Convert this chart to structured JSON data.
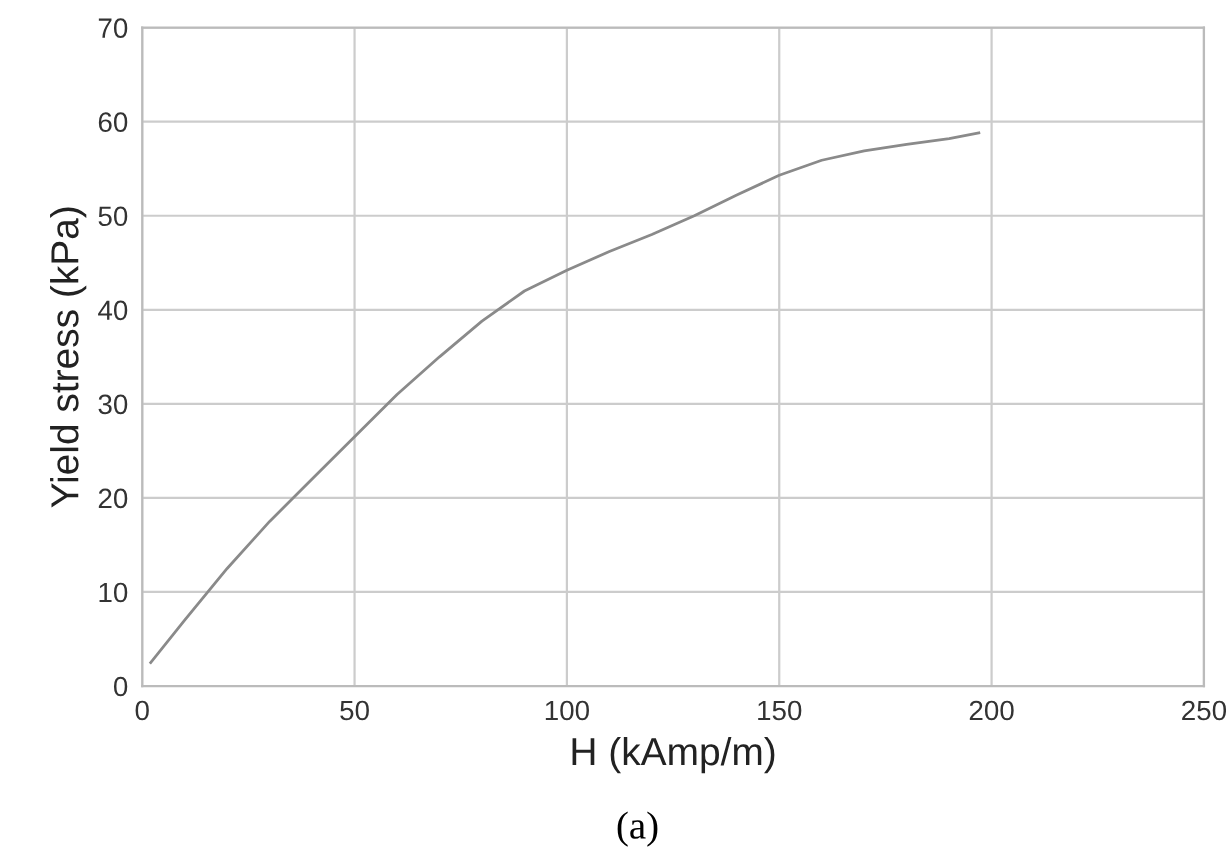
{
  "chart_data": {
    "type": "line",
    "xlabel": "H (kAmp/m)",
    "ylabel": "Yield stress (kPa)",
    "x": [
      2,
      10,
      20,
      30,
      40,
      50,
      60,
      70,
      80,
      90,
      100,
      110,
      120,
      130,
      140,
      150,
      160,
      170,
      180,
      190,
      197
    ],
    "series": [
      {
        "color": "#8a8a8a",
        "values": [
          2.5,
          7,
          12.5,
          17.5,
          22,
          26.5,
          31,
          35,
          38.8,
          42,
          44.2,
          46.2,
          48,
          50,
          52.2,
          54.3,
          55.9,
          56.9,
          57.6,
          58.2,
          58.8
        ]
      }
    ],
    "xlim": [
      0,
      250
    ],
    "xticks": [
      0,
      50,
      100,
      150,
      200,
      250
    ],
    "ylim": [
      0,
      70
    ],
    "yticks": [
      0,
      10,
      20,
      30,
      40,
      50,
      60,
      70
    ],
    "grid": true,
    "line_style": "solid",
    "annotations": [
      "(a)"
    ]
  }
}
